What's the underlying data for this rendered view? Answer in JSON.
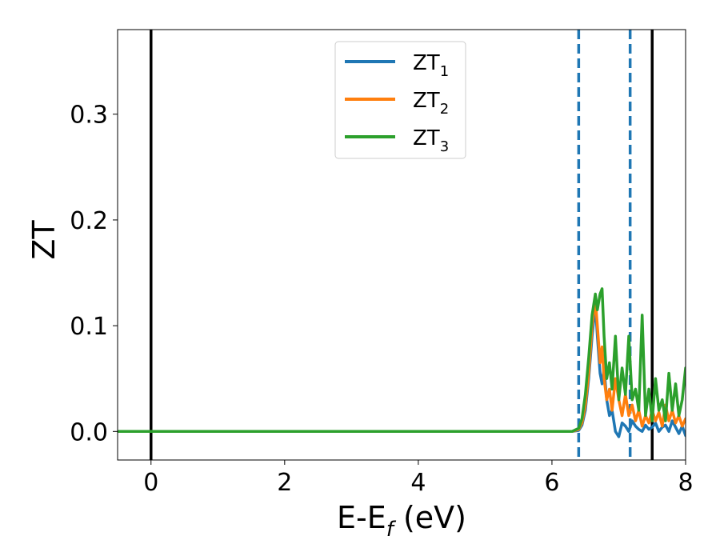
{
  "chart_data": {
    "type": "line",
    "xlabel": "E-E",
    "xlabel_subscript": "f",
    "xlabel_unit": " (eV)",
    "ylabel": "ZT",
    "xlim": [
      -0.5,
      8.0
    ],
    "ylim": [
      -0.027,
      0.38
    ],
    "xticks": [
      0,
      2,
      4,
      6,
      8
    ],
    "xtick_labels": [
      "0",
      "2",
      "4",
      "6",
      "8"
    ],
    "yticks": [
      0.0,
      0.1,
      0.2,
      0.3
    ],
    "ytick_labels": [
      "0.0",
      "0.1",
      "0.2",
      "0.3"
    ],
    "grid": false,
    "legend_position": "top-center",
    "vlines": [
      {
        "x": 0.0,
        "color": "#000000",
        "style": "solid"
      },
      {
        "x": 6.4,
        "color": "#1f77b4",
        "style": "dashed"
      },
      {
        "x": 7.17,
        "color": "#1f77b4",
        "style": "dashed"
      },
      {
        "x": 7.5,
        "color": "#000000",
        "style": "solid"
      }
    ],
    "series": [
      {
        "name": "ZT",
        "subscript": "1",
        "color": "#1f77b4",
        "x": [
          -0.5,
          6.3,
          6.4,
          6.45,
          6.5,
          6.55,
          6.6,
          6.65,
          6.68,
          6.72,
          6.75,
          6.78,
          6.82,
          6.86,
          6.9,
          6.95,
          7.0,
          7.05,
          7.1,
          7.15,
          7.2,
          7.25,
          7.3,
          7.35,
          7.4,
          7.45,
          7.5,
          7.55,
          7.6,
          7.65,
          7.7,
          7.75,
          7.8,
          7.85,
          7.9,
          7.95,
          8.0
        ],
        "y": [
          0.0,
          0.0,
          0.001,
          0.006,
          0.02,
          0.05,
          0.09,
          0.12,
          0.09,
          0.055,
          0.045,
          0.06,
          0.03,
          0.015,
          0.02,
          0.0,
          -0.005,
          0.008,
          0.005,
          0.0,
          0.01,
          0.005,
          0.002,
          0.0,
          0.006,
          0.002,
          0.004,
          0.008,
          0.0,
          0.004,
          0.006,
          0.0,
          0.01,
          0.004,
          -0.002,
          0.005,
          -0.004
        ]
      },
      {
        "name": "ZT",
        "subscript": "2",
        "color": "#ff7f0e",
        "x": [
          -0.5,
          6.3,
          6.4,
          6.45,
          6.5,
          6.55,
          6.6,
          6.65,
          6.68,
          6.72,
          6.75,
          6.78,
          6.82,
          6.86,
          6.9,
          6.95,
          7.0,
          7.05,
          7.1,
          7.15,
          7.2,
          7.25,
          7.3,
          7.35,
          7.4,
          7.45,
          7.5,
          7.55,
          7.6,
          7.65,
          7.7,
          7.75,
          7.8,
          7.85,
          7.9,
          7.95,
          8.0
        ],
        "y": [
          0.0,
          0.0,
          0.002,
          0.008,
          0.025,
          0.055,
          0.1,
          0.125,
          0.1,
          0.065,
          0.08,
          0.05,
          0.03,
          0.04,
          0.02,
          0.05,
          0.03,
          0.015,
          0.035,
          0.015,
          0.025,
          0.01,
          0.02,
          0.005,
          0.015,
          0.008,
          0.02,
          0.01,
          0.018,
          0.005,
          0.025,
          0.01,
          0.02,
          0.008,
          0.015,
          0.005,
          0.012
        ]
      },
      {
        "name": "ZT",
        "subscript": "3",
        "color": "#2ca02c",
        "x": [
          -0.5,
          6.3,
          6.4,
          6.45,
          6.5,
          6.55,
          6.6,
          6.65,
          6.68,
          6.72,
          6.75,
          6.78,
          6.82,
          6.86,
          6.9,
          6.95,
          7.0,
          7.05,
          7.1,
          7.15,
          7.2,
          7.25,
          7.3,
          7.35,
          7.4,
          7.45,
          7.5,
          7.55,
          7.6,
          7.65,
          7.7,
          7.75,
          7.8,
          7.85,
          7.9,
          7.95,
          8.0
        ],
        "y": [
          0.0,
          0.0,
          0.003,
          0.012,
          0.035,
          0.07,
          0.11,
          0.13,
          0.115,
          0.13,
          0.135,
          0.09,
          0.05,
          0.065,
          0.04,
          0.09,
          0.03,
          0.06,
          0.035,
          0.09,
          0.03,
          0.04,
          0.02,
          0.11,
          0.015,
          0.04,
          0.01,
          0.05,
          0.02,
          0.03,
          0.01,
          0.055,
          0.02,
          0.045,
          0.015,
          0.03,
          0.06
        ]
      }
    ]
  }
}
